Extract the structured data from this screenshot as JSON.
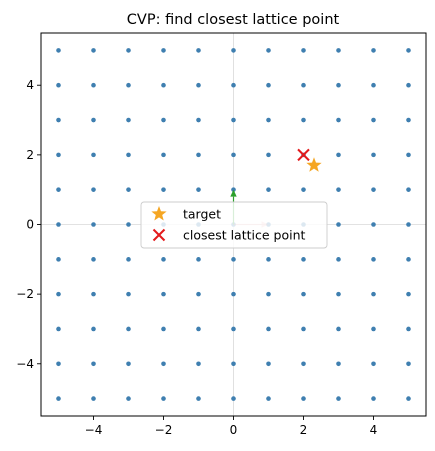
{
  "chart_data": {
    "type": "scatter",
    "title": "CVP: find closest lattice point",
    "xlabel": "",
    "ylabel": "",
    "xlim": [
      -5.5,
      5.5
    ],
    "ylim": [
      -5.5,
      5.5
    ],
    "xticks": [
      -4,
      -2,
      0,
      2,
      4
    ],
    "yticks": [
      -4,
      -2,
      0,
      2,
      4
    ],
    "xtick_labels": [
      "−4",
      "−2",
      "0",
      "2",
      "4"
    ],
    "ytick_labels": [
      "−4",
      "−2",
      "0",
      "2",
      "4"
    ],
    "grid": false,
    "axis_lines_at_zero": true,
    "lattice": {
      "x_range": [
        -5,
        5
      ],
      "y_range": [
        -5,
        5
      ],
      "step": 1,
      "color": "#3f7fb0"
    },
    "basis_vectors": [
      {
        "x": 0,
        "y": 1,
        "color": "#2ca02c"
      },
      {
        "x": 1,
        "y": 0,
        "color": "#d62728"
      }
    ],
    "series": [
      {
        "name": "target",
        "marker": "star",
        "color": "#f5a623",
        "points": [
          {
            "x": 2.3,
            "y": 1.7
          }
        ]
      },
      {
        "name": "closest lattice point",
        "marker": "x",
        "color": "#e31a1c",
        "points": [
          {
            "x": 2,
            "y": 2
          }
        ]
      }
    ],
    "legend_position": "center"
  }
}
